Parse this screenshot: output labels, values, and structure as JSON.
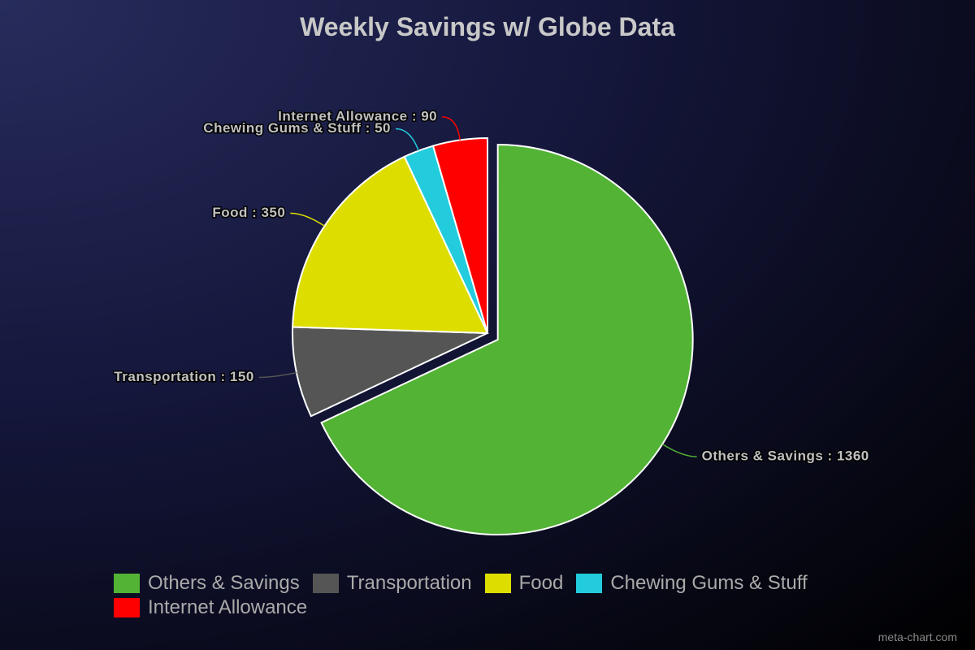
{
  "chart_data": {
    "type": "pie",
    "title": "Weekly Savings w/ Globe Data",
    "categories": [
      "Others & Savings",
      "Transportation",
      "Food",
      "Chewing Gums & Stuff",
      "Internet Allowance"
    ],
    "values": [
      1360,
      150,
      350,
      50,
      90
    ],
    "value_labels": [
      "Others & Savings : 1360",
      "Transportation : 150",
      "Food : 350",
      "Chewing Gums & Stuff : 50",
      "Internet Allowance : 90"
    ],
    "colors": [
      "#52b335",
      "#555555",
      "#dddd00",
      "#22ccdd",
      "#ff0000"
    ],
    "exploded": "Others & Savings",
    "legend": "bottom",
    "watermark": "meta-chart.com"
  }
}
